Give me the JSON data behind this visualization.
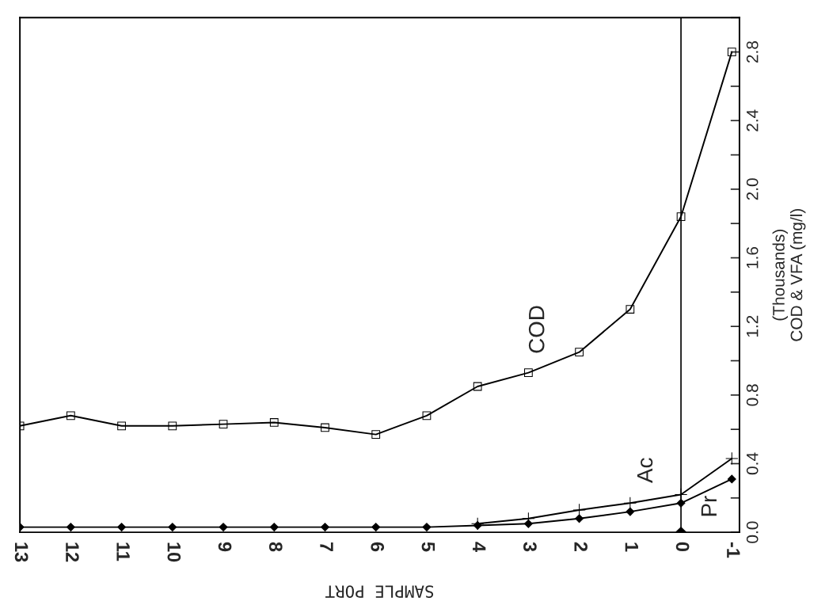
{
  "chart_data": {
    "type": "line",
    "xlabel": "SAMPLE PORT",
    "ylabel": "(Thousands)\nCOD & VFA (mg/l)",
    "x": [
      13,
      12,
      11,
      10,
      9,
      8,
      7,
      6,
      5,
      4,
      3,
      2,
      1,
      0,
      -1
    ],
    "series": [
      {
        "name": "COD",
        "color": "#000000",
        "marker": "square",
        "values": [
          0.62,
          0.68,
          0.62,
          0.62,
          0.63,
          0.64,
          0.61,
          0.57,
          0.68,
          0.85,
          0.93,
          1.05,
          1.3,
          1.84,
          2.8
        ]
      },
      {
        "name": "Ac",
        "color": "#000000",
        "marker": "cross",
        "values": [
          null,
          null,
          null,
          null,
          null,
          null,
          null,
          null,
          null,
          0.05,
          0.08,
          0.13,
          0.17,
          0.22,
          0.43
        ]
      },
      {
        "name": "Pr",
        "color": "#000000",
        "marker": "diamond",
        "values": [
          0.03,
          0.03,
          0.03,
          0.03,
          0.03,
          0.03,
          0.03,
          0.03,
          0.03,
          0.04,
          0.05,
          0.08,
          0.12,
          0.17,
          0.31
        ]
      },
      {
        "type": "scatter",
        "color": "#000000",
        "marker": "diamond",
        "x": [
          0
        ],
        "values": [
          0.0
        ]
      }
    ],
    "ref_lines": [
      {
        "axis": "x",
        "value": 0,
        "color": "#000000"
      }
    ],
    "xlim": [
      13,
      -1.15
    ],
    "xticks": [
      13,
      12,
      11,
      10,
      9,
      8,
      7,
      6,
      5,
      4,
      3,
      2,
      1,
      0,
      -1
    ],
    "ylim": [
      0,
      3.0
    ],
    "yticks": [
      {
        "value": 0.0,
        "label": "0.0"
      },
      {
        "value": 0.2,
        "label": null
      },
      0.4,
      {
        "value": 0.6,
        "label": null
      },
      0.8,
      {
        "value": 1.0,
        "label": null
      },
      1.2,
      {
        "value": 1.4,
        "label": null
      },
      1.6,
      {
        "value": 1.8,
        "label": null
      },
      {
        "value": 2.0,
        "label": "2.0"
      },
      {
        "value": 2.2,
        "label": null
      },
      2.4,
      {
        "value": 2.6,
        "label": null
      },
      2.8,
      {
        "value": 3.0,
        "label": null
      }
    ],
    "grid": false,
    "legend": false
  }
}
